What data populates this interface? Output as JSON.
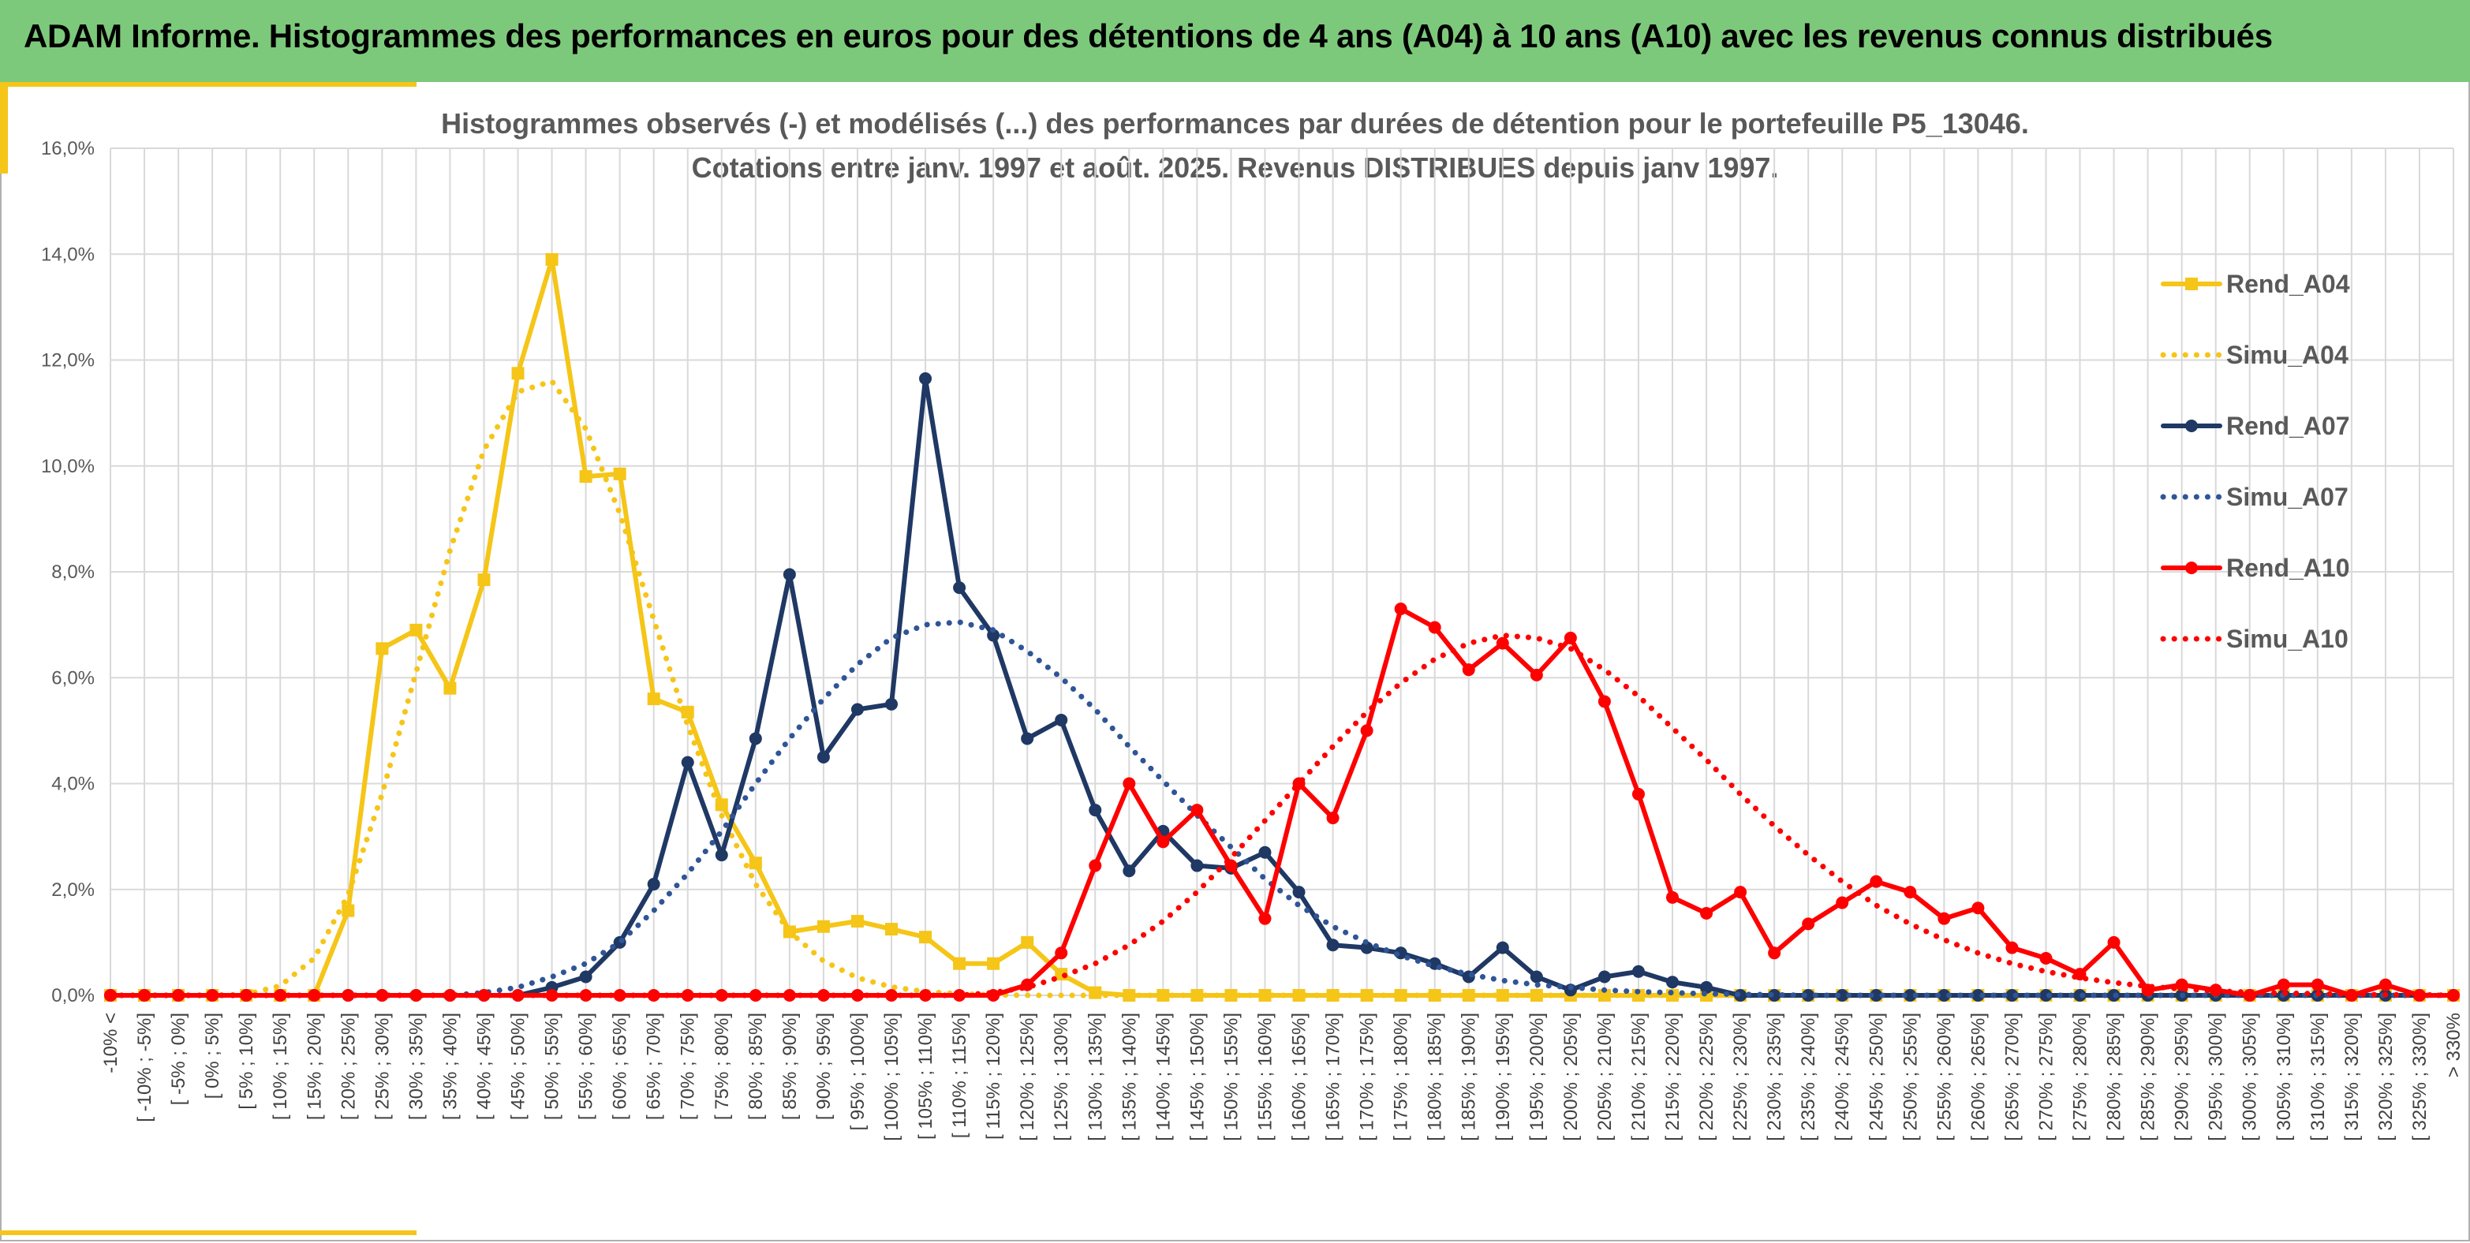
{
  "banner": {
    "title": "ADAM Informe. Histogrammes des performances en euros pour des détentions de 4 ans (A04) à 10 ans (A10) avec les revenus connus distribués"
  },
  "colors": {
    "banner": "#7dc97b",
    "accent": "#f5c518",
    "A04": "#f5c518",
    "A07": "#1f3864",
    "A07_sim": "#2f5597",
    "A10": "#ff0000"
  },
  "chart_data": {
    "type": "line",
    "title": "Histogrammes observés (-) et modélisés (...) des performances par durées de détention pour le portefeuille P5_13046.",
    "subtitle": "Cotations entre janv. 1997 et août. 2025. Revenus DISTRIBUES depuis janv 1997.",
    "xlabel": "",
    "ylabel": "",
    "ylim": [
      0,
      16
    ],
    "y_ticks": [
      "0,0%",
      "2,0%",
      "4,0%",
      "6,0%",
      "8,0%",
      "10,0%",
      "12,0%",
      "14,0%",
      "16,0%"
    ],
    "grid": true,
    "legend_position": "right",
    "categories": [
      "-10% <",
      "[ -10% ; -5%]",
      "[ -5% ; 0%]",
      "[ 0% ; 5%]",
      "[ 5% ; 10%]",
      "[ 10% ; 15%]",
      "[ 15% ; 20%]",
      "[ 20% ; 25%]",
      "[ 25% ; 30%]",
      "[ 30% ; 35%]",
      "[ 35% ; 40%]",
      "[ 40% ; 45%]",
      "[ 45% ; 50%]",
      "[ 50% ; 55%]",
      "[ 55% ; 60%]",
      "[ 60% ; 65%]",
      "[ 65% ; 70%]",
      "[ 70% ; 75%]",
      "[ 75% ; 80%]",
      "[ 80% ; 85%]",
      "[ 85% ; 90%]",
      "[ 90% ; 95%]",
      "[ 95% ; 100%]",
      "[ 100% ; 105%]",
      "[ 105% ; 110%]",
      "[ 110% ; 115%]",
      "[ 115% ; 120%]",
      "[ 120% ; 125%]",
      "[ 125% ; 130%]",
      "[ 130% ; 135%]",
      "[ 135% ; 140%]",
      "[ 140% ; 145%]",
      "[ 145% ; 150%]",
      "[ 150% ; 155%]",
      "[ 155% ; 160%]",
      "[ 160% ; 165%]",
      "[ 165% ; 170%]",
      "[ 170% ; 175%]",
      "[ 175% ; 180%]",
      "[ 180% ; 185%]",
      "[ 185% ; 190%]",
      "[ 190% ; 195%]",
      "[ 195% ; 200%]",
      "[ 200% ; 205%]",
      "[ 205% ; 210%]",
      "[ 210% ; 215%]",
      "[ 215% ; 220%]",
      "[ 220% ; 225%]",
      "[ 225% ; 230%]",
      "[ 230% ; 235%]",
      "[ 235% ; 240%]",
      "[ 240% ; 245%]",
      "[ 245% ; 250%]",
      "[ 250% ; 255%]",
      "[ 255% ; 260%]",
      "[ 260% ; 265%]",
      "[ 265% ; 270%]",
      "[ 270% ; 275%]",
      "[ 275% ; 280%]",
      "[ 280% ; 285%]",
      "[ 285% ; 290%]",
      "[ 290% ; 295%]",
      "[ 295% ; 300%]",
      "[ 300% ; 305%]",
      "[ 305% ; 310%]",
      "[ 310% ; 315%]",
      "[ 315% ; 320%]",
      "[ 320% ; 325%]",
      "[ 325% ; 330%]",
      "> 330%"
    ],
    "series": [
      {
        "name": "Rend_A04",
        "style": "solid",
        "marker": "square",
        "color": "#f5c518",
        "values": [
          0,
          0,
          0,
          0,
          0,
          0,
          0,
          1.6,
          6.55,
          6.9,
          5.8,
          7.85,
          11.75,
          13.9,
          9.8,
          9.85,
          5.6,
          5.35,
          3.6,
          2.5,
          1.2,
          1.3,
          1.4,
          1.25,
          1.1,
          0.6,
          0.6,
          1.0,
          0.4,
          0.05,
          0,
          0,
          0,
          0,
          0,
          0,
          0,
          0,
          0,
          0,
          0,
          0,
          0,
          0,
          0,
          0,
          0,
          0,
          0,
          0,
          0,
          0,
          0,
          0,
          0,
          0,
          0,
          0,
          0,
          0,
          0,
          0,
          0,
          0,
          0,
          0,
          0,
          0,
          0,
          0
        ]
      },
      {
        "name": "Simu_A04",
        "style": "dotted",
        "marker": "none",
        "color": "#f5c518",
        "values": [
          0,
          0,
          0,
          0,
          0.02,
          0.18,
          0.7,
          1.9,
          3.8,
          6.1,
          8.4,
          10.3,
          11.4,
          11.6,
          10.7,
          9.1,
          7.1,
          5.1,
          3.4,
          2.1,
          1.2,
          0.65,
          0.33,
          0.16,
          0.07,
          0.03,
          0.01,
          0,
          0,
          0,
          0,
          0,
          0,
          0,
          0,
          0,
          0,
          0,
          0,
          0,
          0,
          0,
          0,
          0,
          0,
          0,
          0,
          0,
          0,
          0,
          0,
          0,
          0,
          0,
          0,
          0,
          0,
          0,
          0,
          0,
          0,
          0,
          0,
          0,
          0,
          0,
          0,
          0,
          0,
          0
        ]
      },
      {
        "name": "Rend_A07",
        "style": "solid",
        "marker": "circle",
        "color": "#1f3864",
        "values": [
          0,
          0,
          0,
          0,
          0,
          0,
          0,
          0,
          0,
          0,
          0,
          0,
          0,
          0.15,
          0.35,
          1.0,
          2.1,
          4.4,
          2.65,
          4.85,
          7.95,
          4.5,
          5.4,
          5.5,
          11.65,
          7.7,
          6.8,
          4.85,
          5.2,
          3.5,
          2.35,
          3.1,
          2.45,
          2.4,
          2.7,
          1.95,
          0.95,
          0.9,
          0.8,
          0.6,
          0.35,
          0.9,
          0.35,
          0.1,
          0.35,
          0.45,
          0.25,
          0.15,
          0,
          0,
          0,
          0,
          0,
          0,
          0,
          0,
          0,
          0,
          0,
          0,
          0,
          0,
          0,
          0,
          0,
          0,
          0,
          0,
          0,
          0
        ]
      },
      {
        "name": "Simu_A07",
        "style": "dotted",
        "marker": "none",
        "color": "#2f5597",
        "values": [
          0,
          0,
          0,
          0,
          0,
          0,
          0,
          0,
          0,
          0,
          0,
          0.05,
          0.15,
          0.35,
          0.6,
          1.0,
          1.6,
          2.3,
          3.1,
          4.0,
          4.85,
          5.6,
          6.25,
          6.75,
          7.0,
          7.05,
          6.9,
          6.5,
          6.0,
          5.4,
          4.7,
          4.05,
          3.4,
          2.8,
          2.2,
          1.7,
          1.3,
          1.0,
          0.75,
          0.55,
          0.4,
          0.28,
          0.2,
          0.15,
          0.1,
          0.07,
          0.05,
          0.03,
          0.02,
          0.01,
          0,
          0,
          0,
          0,
          0,
          0,
          0,
          0,
          0,
          0,
          0,
          0,
          0,
          0,
          0,
          0,
          0,
          0,
          0,
          0
        ]
      },
      {
        "name": "Rend_A10",
        "style": "solid",
        "marker": "circle",
        "color": "#ff0000",
        "values": [
          0,
          0,
          0,
          0,
          0,
          0,
          0,
          0,
          0,
          0,
          0,
          0,
          0,
          0,
          0,
          0,
          0,
          0,
          0,
          0,
          0,
          0,
          0,
          0,
          0,
          0,
          0,
          0.2,
          0.8,
          2.45,
          4.0,
          2.9,
          3.5,
          2.45,
          1.45,
          4.0,
          3.35,
          5.0,
          7.3,
          6.95,
          6.15,
          6.65,
          6.05,
          6.75,
          5.55,
          3.8,
          1.85,
          1.55,
          1.95,
          0.8,
          1.35,
          1.75,
          2.15,
          1.95,
          1.45,
          1.65,
          0.9,
          0.7,
          0.4,
          1.0,
          0.1,
          0.2,
          0.1,
          0,
          0.2,
          0.2,
          0,
          0.2,
          0,
          0
        ]
      },
      {
        "name": "Simu_A10",
        "style": "dotted",
        "marker": "none",
        "color": "#ff0000",
        "values": [
          0,
          0,
          0,
          0,
          0,
          0,
          0,
          0,
          0,
          0,
          0,
          0,
          0,
          0,
          0,
          0,
          0,
          0,
          0,
          0,
          0,
          0,
          0,
          0,
          0,
          0,
          0.05,
          0.15,
          0.35,
          0.6,
          0.95,
          1.4,
          1.95,
          2.6,
          3.3,
          4.0,
          4.7,
          5.35,
          5.9,
          6.35,
          6.65,
          6.8,
          6.75,
          6.55,
          6.15,
          5.65,
          5.05,
          4.45,
          3.8,
          3.2,
          2.65,
          2.15,
          1.7,
          1.35,
          1.05,
          0.8,
          0.6,
          0.45,
          0.33,
          0.24,
          0.17,
          0.12,
          0.08,
          0.06,
          0.04,
          0.03,
          0.02,
          0.01,
          0.01,
          0
        ]
      }
    ]
  }
}
